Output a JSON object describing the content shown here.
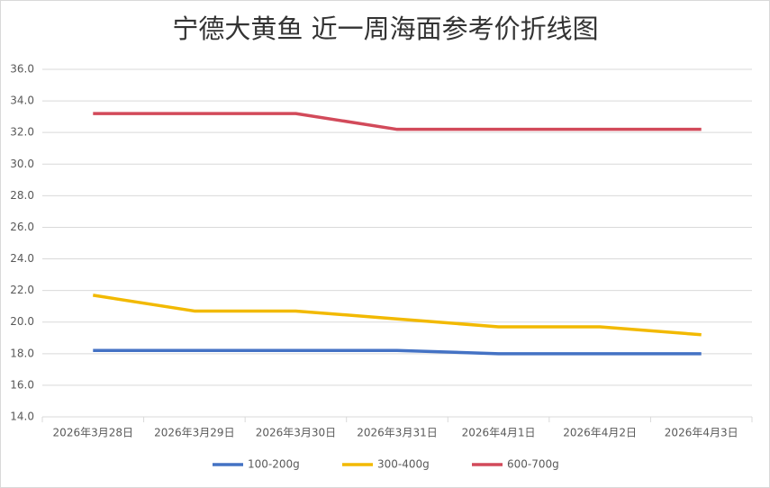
{
  "chart_data": {
    "type": "line",
    "title": "宁德大黄鱼 近一周海面参考价折线图",
    "categories": [
      "2026年3月28日",
      "2026年3月29日",
      "2026年3月30日",
      "2026年3月31日",
      "2026年4月1日",
      "2026年4月2日",
      "2026年4月3日"
    ],
    "series": [
      {
        "name": "100-200g",
        "color": "#4472c4",
        "values": [
          18.2,
          18.2,
          18.2,
          18.2,
          18.0,
          18.0,
          18.0
        ]
      },
      {
        "name": "300-400g",
        "color": "#f2b900",
        "values": [
          21.7,
          20.7,
          20.7,
          20.2,
          19.7,
          19.7,
          19.2
        ]
      },
      {
        "name": "600-700g",
        "color": "#d24a5a",
        "values": [
          33.2,
          33.2,
          33.2,
          32.2,
          32.2,
          32.2,
          32.2
        ]
      }
    ],
    "ylim": [
      14,
      36
    ],
    "yticks": [
      {
        "value": 14,
        "label": "14.0"
      },
      {
        "value": 16,
        "label": "16.0"
      },
      {
        "value": 18,
        "label": "18.0"
      },
      {
        "value": 20,
        "label": "20.0"
      },
      {
        "value": 22,
        "label": "22.0"
      },
      {
        "value": 24,
        "label": "24.0"
      },
      {
        "value": 26,
        "label": "26.0"
      },
      {
        "value": 28,
        "label": "28.0"
      },
      {
        "value": 30,
        "label": "30.0"
      },
      {
        "value": 32,
        "label": "32.0"
      },
      {
        "value": 34,
        "label": "34.0"
      },
      {
        "value": 36,
        "label": "36.0"
      }
    ],
    "grid": true,
    "legend": "bottom"
  }
}
